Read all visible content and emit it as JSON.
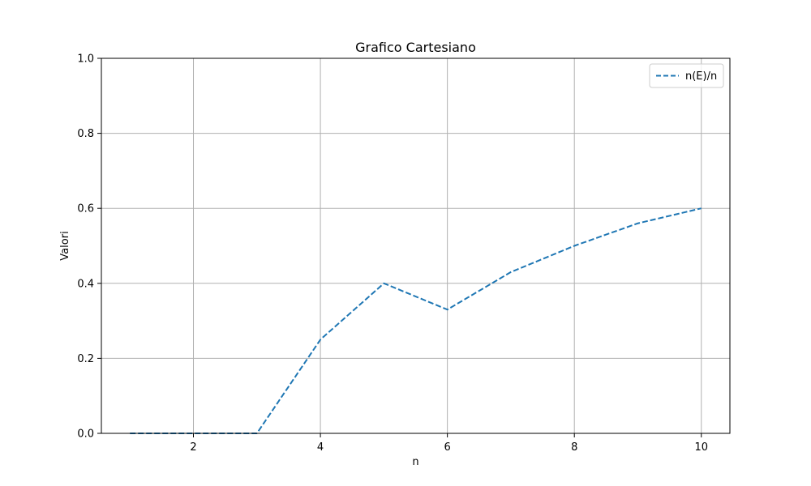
{
  "chart_data": {
    "type": "line",
    "title": "Grafico Cartesiano",
    "xlabel": "n",
    "ylabel": "Valori",
    "xlim": [
      0.55,
      10.45
    ],
    "ylim": [
      0,
      1.0
    ],
    "xticks": [
      2,
      4,
      6,
      8,
      10
    ],
    "yticks": [
      0.0,
      0.2,
      0.4,
      0.6,
      0.8,
      1.0
    ],
    "xtick_labels": [
      "2",
      "4",
      "6",
      "8",
      "10"
    ],
    "ytick_labels": [
      "0.0",
      "0.2",
      "0.4",
      "0.6",
      "0.8",
      "1.0"
    ],
    "grid": true,
    "legend_position": "top-right",
    "series": [
      {
        "name": "n(E)/n",
        "color": "#1f77b4",
        "line_style": "dashed",
        "x": [
          1,
          2,
          3,
          4,
          5,
          6,
          7,
          8,
          9,
          10
        ],
        "y": [
          0.0,
          0.0,
          0.0,
          0.25,
          0.4,
          0.33,
          0.43,
          0.5,
          0.56,
          0.6
        ]
      }
    ]
  }
}
